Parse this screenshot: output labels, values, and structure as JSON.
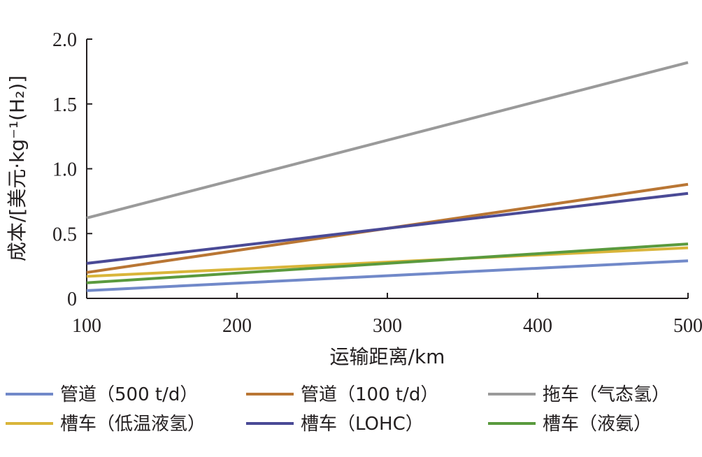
{
  "chart_data": {
    "type": "line",
    "xlabel": "运输距离/km",
    "ylabel": "成本/[美元·kg⁻¹(H₂)]",
    "xlim": [
      100,
      500
    ],
    "ylim": [
      0,
      2.0
    ],
    "x_ticks": [
      "100",
      "200",
      "300",
      "400",
      "500"
    ],
    "y_ticks": [
      "0",
      "0.5",
      "1.0",
      "1.5",
      "2.0"
    ],
    "grid": false,
    "legend_position": "bottom",
    "x": [
      100,
      500
    ],
    "series": [
      {
        "name": "管道（500 t/d）",
        "color": "#7189c9",
        "values": [
          0.06,
          0.29
        ]
      },
      {
        "name": "管道（100 t/d）",
        "color": "#b97634",
        "values": [
          0.2,
          0.88
        ]
      },
      {
        "name": "拖车（气态氢）",
        "color": "#9a9a9a",
        "values": [
          0.62,
          1.82
        ]
      },
      {
        "name": "槽车（低温液氢）",
        "color": "#d9b53a",
        "values": [
          0.17,
          0.39
        ]
      },
      {
        "name": "槽车（LOHC）",
        "color": "#4a4a96",
        "values": [
          0.27,
          0.81
        ]
      },
      {
        "name": "槽车（液氨）",
        "color": "#5a9a3e",
        "values": [
          0.12,
          0.42
        ]
      }
    ]
  }
}
